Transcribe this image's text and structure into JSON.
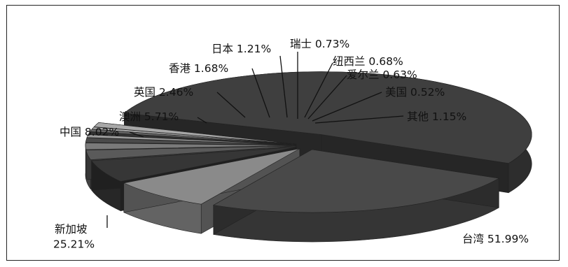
{
  "chart_data": {
    "type": "pie",
    "style": "3d-exploded",
    "slices": [
      {
        "label": "台湾",
        "value": 51.99,
        "value_label": "51.99%",
        "color": "#3f3f3f"
      },
      {
        "label": "新加坡",
        "value": 25.21,
        "value_label": "25.21%",
        "color": "#494949"
      },
      {
        "label": "中国",
        "value": 8.02,
        "value_label": "8.02%",
        "color": "#8a8a8a"
      },
      {
        "label": "澳洲",
        "value": 5.71,
        "value_label": "5.71%",
        "color": "#363636"
      },
      {
        "label": "英国",
        "value": 2.46,
        "value_label": "2.46%",
        "color": "#5a5a5a"
      },
      {
        "label": "香港",
        "value": 1.68,
        "value_label": "1.68%",
        "color": "#7a7a7a"
      },
      {
        "label": "日本",
        "value": 1.21,
        "value_label": "1.21%",
        "color": "#4a4a4a"
      },
      {
        "label": "瑞士",
        "value": 0.73,
        "value_label": "0.73%",
        "color": "#9a9a9a"
      },
      {
        "label": "纽西兰",
        "value": 0.68,
        "value_label": "0.68%",
        "color": "#333333"
      },
      {
        "label": "爱尔兰",
        "value": 0.63,
        "value_label": "0.63%",
        "color": "#666666"
      },
      {
        "label": "美国",
        "value": 0.52,
        "value_label": "0.52%",
        "color": "#b0b0b0"
      },
      {
        "label": "其他",
        "value": 1.15,
        "value_label": "1.15%",
        "color": "#a8a8a8"
      }
    ]
  }
}
